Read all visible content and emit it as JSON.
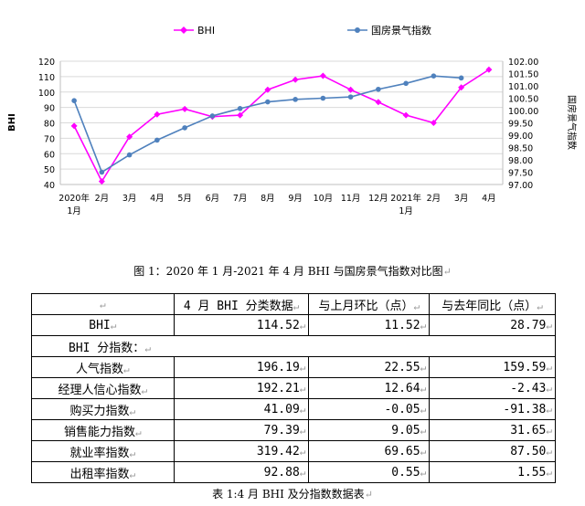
{
  "chart_data": {
    "type": "line",
    "legend": {
      "placement": "top",
      "entries": [
        "BHI",
        "国房景气指数"
      ]
    },
    "x_labels": [
      {
        "l1": "2020年",
        "l2": "1月"
      },
      {
        "l1": "2月",
        "l2": ""
      },
      {
        "l1": "3月",
        "l2": ""
      },
      {
        "l1": "4月",
        "l2": ""
      },
      {
        "l1": "5月",
        "l2": ""
      },
      {
        "l1": "6月",
        "l2": ""
      },
      {
        "l1": "7月",
        "l2": ""
      },
      {
        "l1": "8月",
        "l2": ""
      },
      {
        "l1": "9月",
        "l2": ""
      },
      {
        "l1": "10月",
        "l2": ""
      },
      {
        "l1": "11月",
        "l2": ""
      },
      {
        "l1": "12月",
        "l2": ""
      },
      {
        "l1": "2021年",
        "l2": "1月"
      },
      {
        "l1": "2月",
        "l2": ""
      },
      {
        "l1": "3月",
        "l2": ""
      },
      {
        "l1": "4月",
        "l2": ""
      }
    ],
    "left_axis": {
      "label": "BHI",
      "min": 40,
      "max": 120,
      "ticks": [
        "40",
        "50",
        "60",
        "70",
        "80",
        "90",
        "100",
        "110",
        "120"
      ]
    },
    "right_axis": {
      "label": "国房景气指数",
      "min": 97.0,
      "max": 102.0,
      "ticks": [
        "97.00",
        "97.50",
        "98.00",
        "98.50",
        "99.00",
        "99.50",
        "100.00",
        "100.50",
        "101.00",
        "101.50",
        "102.00"
      ]
    },
    "grid": "horizontal",
    "series": [
      {
        "name": "BHI",
        "axis": "left",
        "color": "#ff00ff",
        "marker": "diamond",
        "values": [
          78,
          42,
          71,
          85.5,
          89,
          84,
          85,
          101.5,
          108,
          110.5,
          101.5,
          93.5,
          85,
          80,
          103,
          114.52
        ]
      },
      {
        "name": "国房景气指数",
        "axis": "right",
        "color": "#4f81bd",
        "marker": "circle",
        "values": [
          100.4,
          97.5,
          98.2,
          98.8,
          99.3,
          99.78,
          100.08,
          100.35,
          100.45,
          100.5,
          100.55,
          100.86,
          101.1,
          101.4,
          101.32,
          null
        ]
      }
    ]
  },
  "captions": {
    "figure": "图 1：2020 年 1 月-2021 年 4 月 BHI 与国房景气指数对比图",
    "table": "表 1:4 月 BHI 及分指数数据表"
  },
  "table": {
    "header": [
      "",
      "4 月 BHI 分类数据",
      "与上月环比（点）",
      "与去年同比（点）"
    ],
    "bhi_row": {
      "name": "BHI",
      "values": [
        "114.52",
        "11.52",
        "28.79"
      ]
    },
    "sub_header": "BHI 分指数：",
    "rows": [
      {
        "name": "人气指数",
        "values": [
          "196.19",
          "22.55",
          "159.59"
        ]
      },
      {
        "name": "经理人信心指数",
        "values": [
          "192.21",
          "12.64",
          "-2.43"
        ]
      },
      {
        "name": "购买力指数",
        "values": [
          "41.09",
          "-0.05",
          "-91.38"
        ]
      },
      {
        "name": "销售能力指数",
        "values": [
          "79.39",
          "9.05",
          "31.65"
        ]
      },
      {
        "name": "就业率指数",
        "values": [
          "319.42",
          "69.65",
          "87.50"
        ]
      },
      {
        "name": "出租率指数",
        "values": [
          "92.88",
          "0.55",
          "1.55"
        ]
      }
    ]
  }
}
